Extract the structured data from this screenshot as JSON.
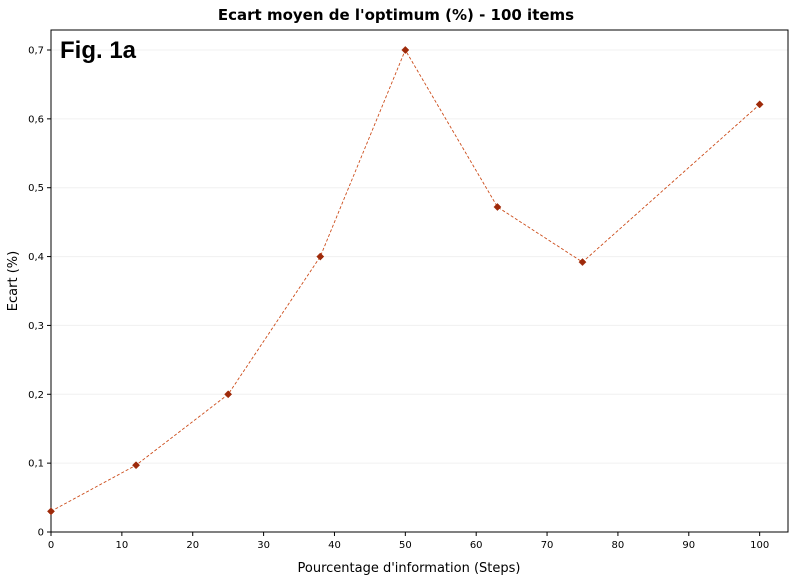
{
  "chart_data": {
    "type": "line",
    "title": "Ecart moyen de l'optimum (%) - 100 items",
    "annotation": "Fig. 1a",
    "xlabel": "Pourcentage d'information (Steps)",
    "ylabel": "Ecart (%)",
    "xlim": [
      0,
      104
    ],
    "ylim": [
      0,
      0.7
    ],
    "x_ticks": [
      0,
      10,
      20,
      30,
      40,
      50,
      60,
      70,
      80,
      90,
      100
    ],
    "y_ticks": [
      "0",
      "0,1",
      "0,2",
      "0,3",
      "0,4",
      "0,5",
      "0,6",
      "0,7"
    ],
    "y_tick_values": [
      0,
      0.1,
      0.2,
      0.3,
      0.4,
      0.5,
      0.6,
      0.7
    ],
    "grid": true,
    "series": [
      {
        "x": [
          0,
          12,
          25,
          38,
          50,
          63,
          75,
          100
        ],
        "values": [
          0.03,
          0.097,
          0.2,
          0.4,
          0.7,
          0.472,
          0.392,
          0.621
        ],
        "color": "#cc4c1a",
        "marker_color": "#9e2a0a",
        "marker": "diamond",
        "line_style": "dashed"
      }
    ]
  }
}
